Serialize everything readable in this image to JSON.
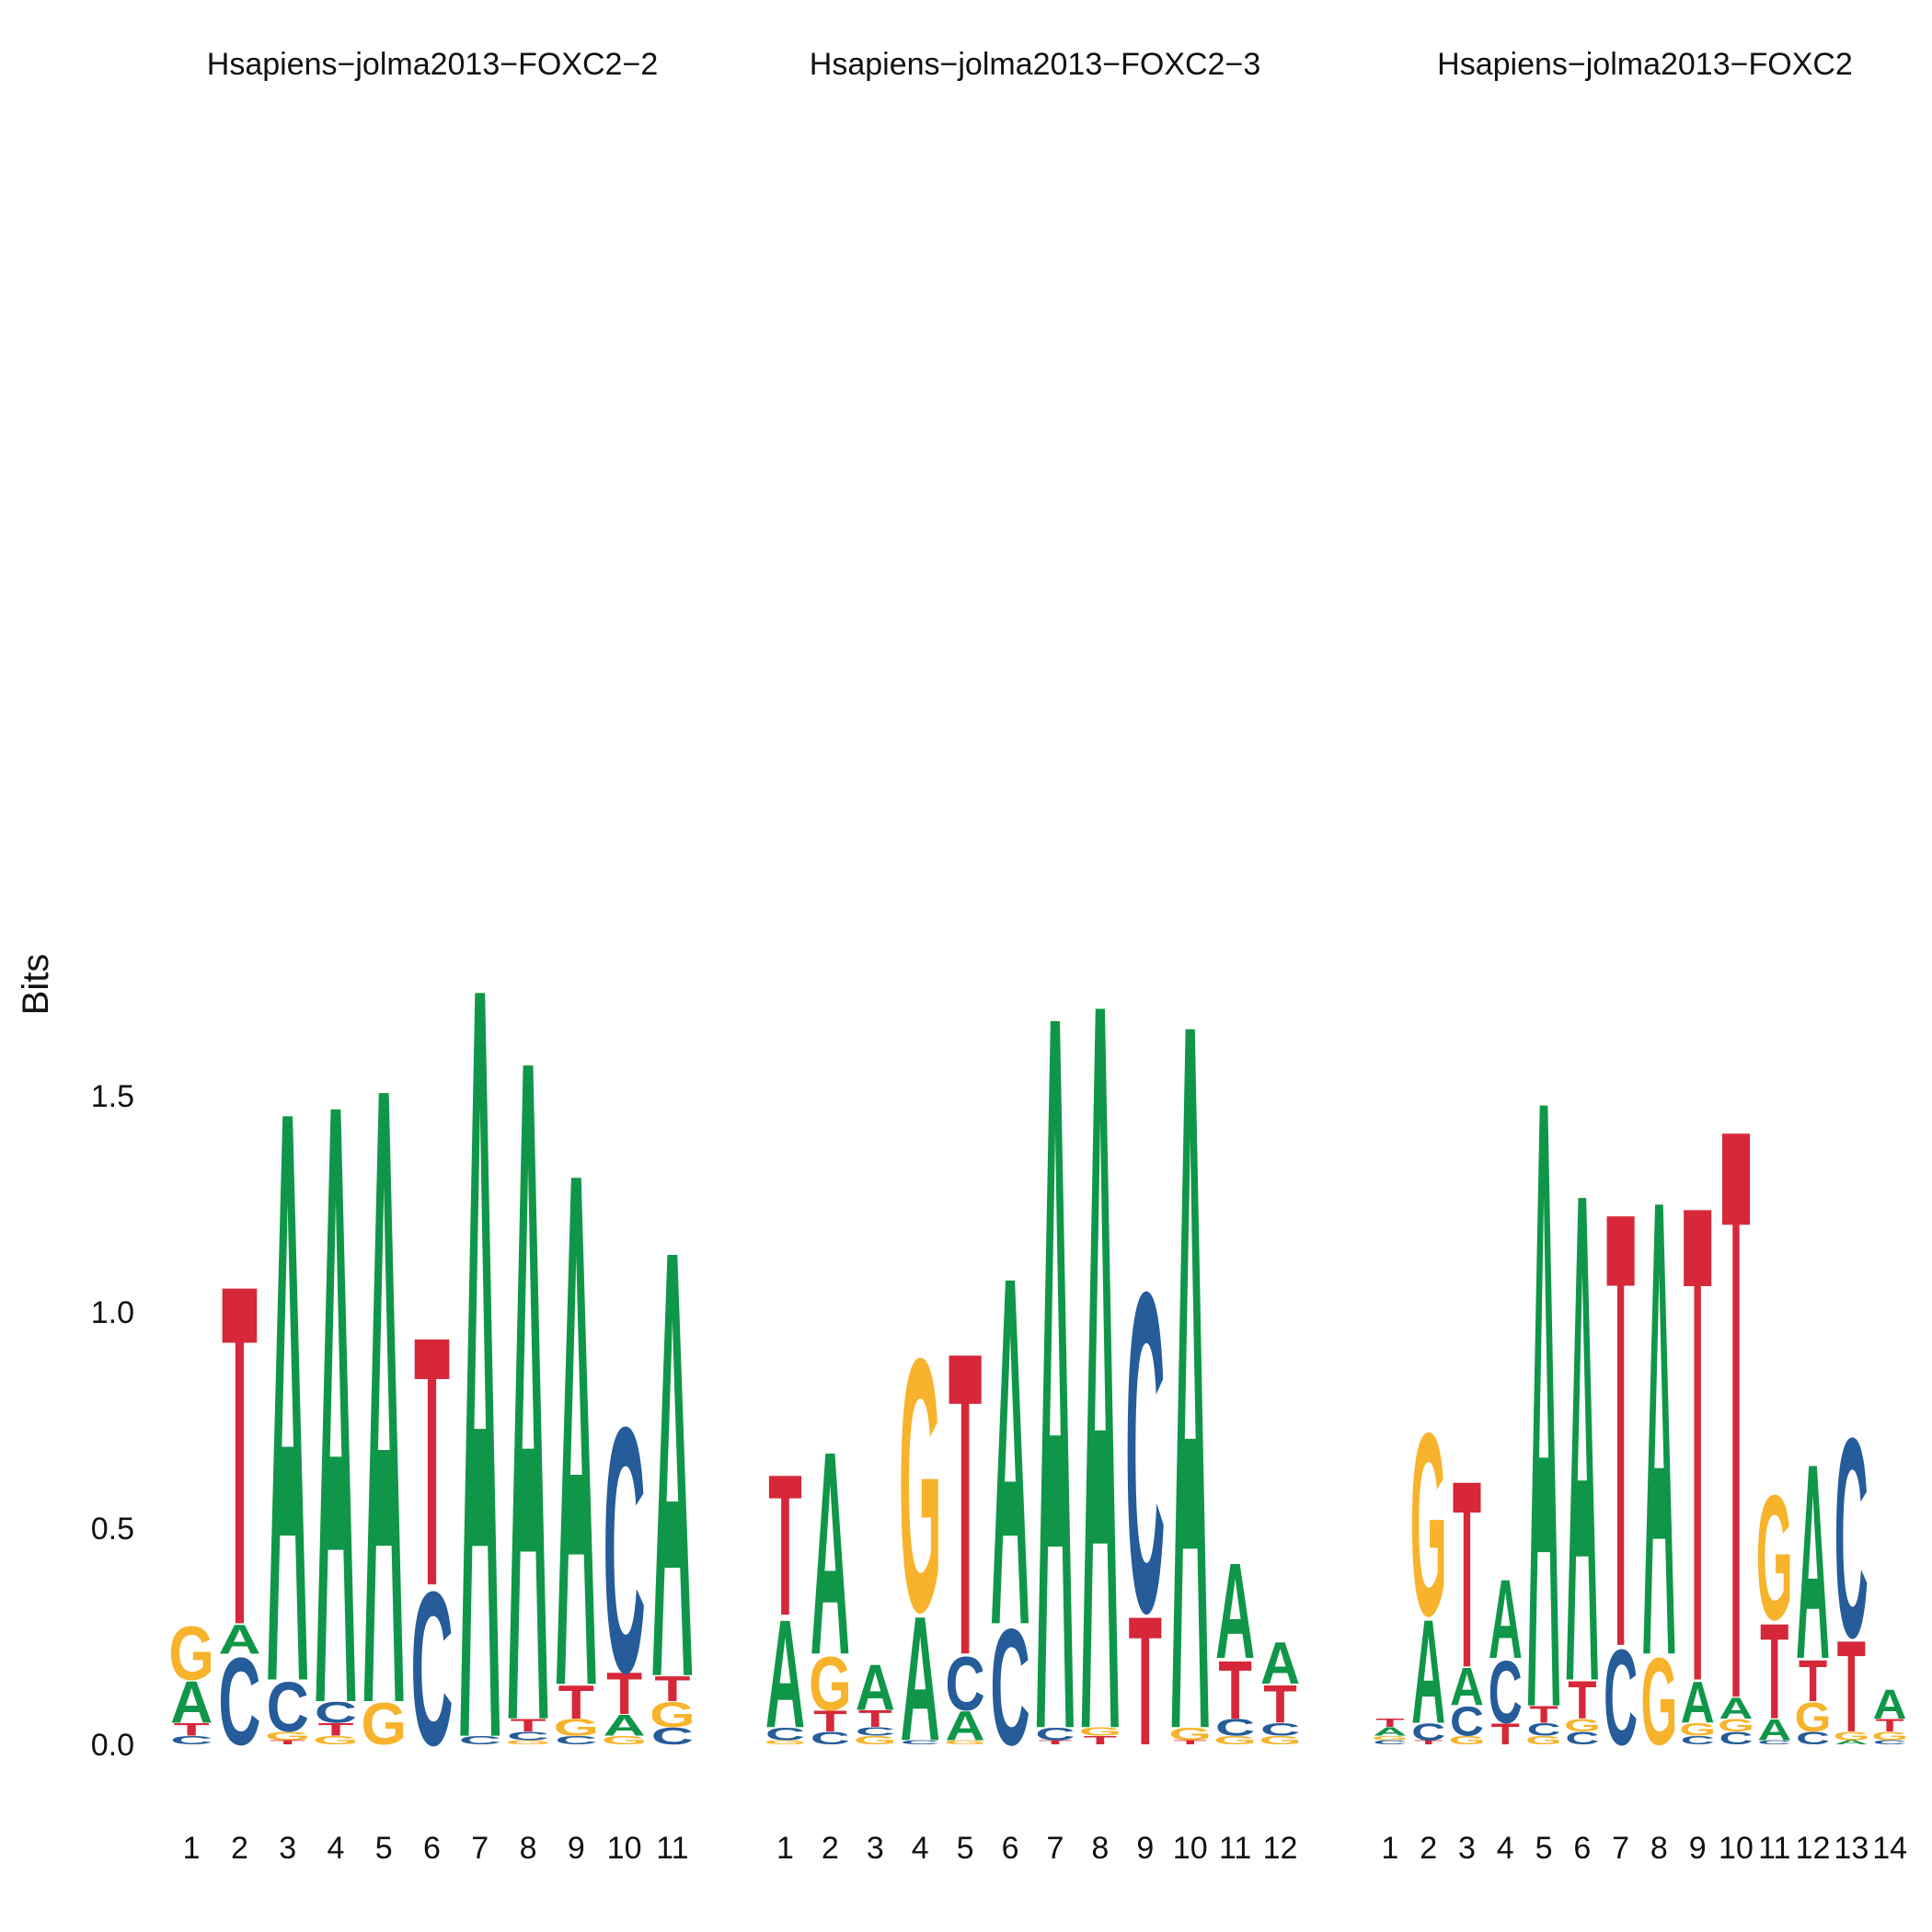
{
  "chart_data": {
    "type": "sequence-logo",
    "ylabel": "Bits",
    "ylim": [
      0,
      1.85
    ],
    "yticks": [
      0.0,
      0.5,
      1.0,
      1.5
    ],
    "ytick_labels": [
      "0.0",
      "0.5",
      "1.0",
      "1.5"
    ],
    "colors": {
      "A": "#109648",
      "C": "#255C99",
      "G": "#F7B32B",
      "T": "#D62839"
    },
    "panels": [
      {
        "title": "Hsapiens−jolma2013−FOXC2−2",
        "positions": [
          [
            [
              "C",
              0.02
            ],
            [
              "T",
              0.03
            ],
            [
              "A",
              0.1
            ],
            [
              "G",
              0.13
            ]
          ],
          [
            [
              "C",
              0.21
            ],
            [
              "A",
              0.07
            ],
            [
              "T",
              0.82
            ]
          ],
          [
            [
              "T",
              0.01
            ],
            [
              "G",
              0.02
            ],
            [
              "C",
              0.12
            ],
            [
              "A",
              1.38
            ]
          ],
          [
            [
              "G",
              0.02
            ],
            [
              "T",
              0.03
            ],
            [
              "C",
              0.05
            ],
            [
              "A",
              1.45
            ]
          ],
          [
            [
              "G",
              0.1
            ],
            [
              "A",
              1.49
            ]
          ],
          [
            [
              "C",
              0.37
            ],
            [
              "T",
              0.6
            ]
          ],
          [
            [
              "C",
              0.02
            ],
            [
              "A",
              1.82
            ]
          ],
          [
            [
              "G",
              0.01
            ],
            [
              "C",
              0.02
            ],
            [
              "T",
              0.03
            ],
            [
              "A",
              1.6
            ]
          ],
          [
            [
              "C",
              0.02
            ],
            [
              "G",
              0.04
            ],
            [
              "T",
              0.08
            ],
            [
              "A",
              1.24
            ]
          ],
          [
            [
              "G",
              0.02
            ],
            [
              "A",
              0.05
            ],
            [
              "T",
              0.1
            ],
            [
              "C",
              0.59
            ]
          ],
          [
            [
              "C",
              0.04
            ],
            [
              "G",
              0.06
            ],
            [
              "T",
              0.06
            ],
            [
              "A",
              1.03
            ]
          ]
        ]
      },
      {
        "title": "Hsapiens−jolma2013−FOXC2−3",
        "positions": [
          [
            [
              "G",
              0.01
            ],
            [
              "C",
              0.03
            ],
            [
              "A",
              0.26
            ],
            [
              "T",
              0.34
            ]
          ],
          [
            [
              "C",
              0.03
            ],
            [
              "T",
              0.05
            ],
            [
              "G",
              0.13
            ],
            [
              "A",
              0.49
            ]
          ],
          [
            [
              "G",
              0.02
            ],
            [
              "C",
              0.02
            ],
            [
              "T",
              0.04
            ],
            [
              "A",
              0.11
            ]
          ],
          [
            [
              "C",
              0.01
            ],
            [
              "A",
              0.3
            ],
            [
              "G",
              0.61
            ]
          ],
          [
            [
              "G",
              0.01
            ],
            [
              "A",
              0.07
            ],
            [
              "C",
              0.13
            ],
            [
              "T",
              0.73
            ]
          ],
          [
            [
              "C",
              0.28
            ],
            [
              "A",
              0.84
            ]
          ],
          [
            [
              "T",
              0.01
            ],
            [
              "C",
              0.03
            ],
            [
              "A",
              1.73
            ]
          ],
          [
            [
              "T",
              0.02
            ],
            [
              "G",
              0.02
            ],
            [
              "A",
              1.76
            ]
          ],
          [
            [
              "T",
              0.31
            ],
            [
              "C",
              0.77
            ]
          ],
          [
            [
              "T",
              0.01
            ],
            [
              "G",
              0.03
            ],
            [
              "A",
              1.71
            ]
          ],
          [
            [
              "G",
              0.02
            ],
            [
              "C",
              0.04
            ],
            [
              "T",
              0.14
            ],
            [
              "A",
              0.23
            ]
          ],
          [
            [
              "G",
              0.02
            ],
            [
              "C",
              0.03
            ],
            [
              "T",
              0.09
            ],
            [
              "A",
              0.1
            ]
          ]
        ]
      },
      {
        "title": "Hsapiens−jolma2013−FOXC2",
        "positions": [
          [
            [
              "C",
              0.01
            ],
            [
              "G",
              0.01
            ],
            [
              "A",
              0.02
            ],
            [
              "T",
              0.02
            ]
          ],
          [
            [
              "T",
              0.01
            ],
            [
              "C",
              0.04
            ],
            [
              "A",
              0.25
            ],
            [
              "G",
              0.44
            ]
          ],
          [
            [
              "G",
              0.02
            ],
            [
              "C",
              0.07
            ],
            [
              "A",
              0.09
            ],
            [
              "T",
              0.45
            ]
          ],
          [
            [
              "T",
              0.05
            ],
            [
              "C",
              0.15
            ],
            [
              "A",
              0.19
            ]
          ],
          [
            [
              "G",
              0.02
            ],
            [
              "C",
              0.03
            ],
            [
              "T",
              0.04
            ],
            [
              "A",
              1.47
            ]
          ],
          [
            [
              "C",
              0.03
            ],
            [
              "G",
              0.03
            ],
            [
              "T",
              0.09
            ],
            [
              "A",
              1.18
            ]
          ],
          [
            [
              "C",
              0.23
            ],
            [
              "T",
              1.05
            ]
          ],
          [
            [
              "G",
              0.21
            ],
            [
              "A",
              1.1
            ]
          ],
          [
            [
              "C",
              0.02
            ],
            [
              "G",
              0.03
            ],
            [
              "A",
              0.1
            ],
            [
              "T",
              1.15
            ]
          ],
          [
            [
              "C",
              0.03
            ],
            [
              "G",
              0.03
            ],
            [
              "A",
              0.05
            ],
            [
              "T",
              1.38
            ]
          ],
          [
            [
              "C",
              0.01
            ],
            [
              "A",
              0.05
            ],
            [
              "T",
              0.23
            ],
            [
              "G",
              0.3
            ]
          ],
          [
            [
              "C",
              0.03
            ],
            [
              "G",
              0.07
            ],
            [
              "T",
              0.1
            ],
            [
              "A",
              0.47
            ]
          ],
          [
            [
              "A",
              0.01
            ],
            [
              "G",
              0.02
            ],
            [
              "T",
              0.22
            ],
            [
              "C",
              0.48
            ]
          ],
          [
            [
              "C",
              0.01
            ],
            [
              "G",
              0.02
            ],
            [
              "T",
              0.03
            ],
            [
              "A",
              0.07
            ]
          ]
        ]
      }
    ]
  }
}
